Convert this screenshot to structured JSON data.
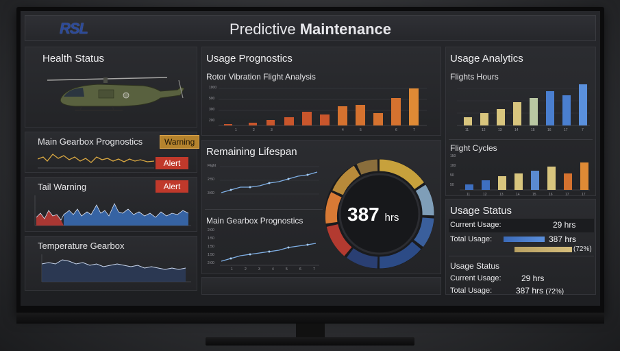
{
  "header": {
    "logo": "RSL",
    "title_light": "Predictive ",
    "title_bold": "Maintenance"
  },
  "health": {
    "title": "Health Status",
    "gearbox": {
      "label": "Main Gearbox Prognostics",
      "warning": "Warning",
      "alert": "Alert"
    },
    "tail": {
      "label": "Tail Warning",
      "alert": "Alert"
    },
    "temp": {
      "label": "Temperature Gearbox"
    }
  },
  "usage_prognostics": {
    "title": "Usage Prognostics",
    "rotor": {
      "label": "Rotor Vibration Flight Analysis",
      "yticks": [
        "1000",
        "500",
        "300",
        "200"
      ],
      "xticks": [
        "1",
        "2",
        "3",
        "4",
        "5",
        "6",
        "7"
      ]
    }
  },
  "lifespan": {
    "title": "Remaining Lifespan",
    "value": "387",
    "unit": "hrs",
    "chart_yticks": [
      "Flight",
      "2:50",
      "3:60"
    ],
    "gearbox_label": "Main Gearbox Prognostics",
    "gearbox_yticks": [
      "2:00",
      "1:50",
      "1:50",
      "1:50",
      "2:00"
    ],
    "gearbox_xticks": [
      "1",
      "2",
      "3",
      "4",
      "5",
      "6",
      "7"
    ]
  },
  "analytics": {
    "title": "Usage Analytics",
    "hours": {
      "label": "Flights Hours",
      "xticks": [
        "11",
        "12",
        "13",
        "14",
        "15",
        "16",
        "17",
        "7"
      ]
    },
    "cycles": {
      "label": "Flight Cycles",
      "yticks": [
        "150",
        "100",
        "50",
        "50"
      ],
      "xticks": [
        "11",
        "12",
        "13",
        "14",
        "15",
        "16",
        "17",
        "17"
      ]
    }
  },
  "usage_status": {
    "title": "Usage Status",
    "current_label": "Current Usage:",
    "current_value": "29 hrs",
    "total_label": "Total Usage:",
    "total_value": "387 hrs",
    "total_pct": "(72%)",
    "sub_title": "Usage Status",
    "current_label2": "Current Usage:",
    "current_value2": "29 hrs",
    "total_label2": "Total Usage:",
    "total_value2": "387 hrs",
    "total_pct2": "(72%)"
  },
  "colors": {
    "accent_orange": "#d5722f",
    "accent_blue": "#4a7fd0",
    "accent_tan": "#d8c57e",
    "alert_red": "#c0392b",
    "warning_amber": "#b5832d"
  }
}
